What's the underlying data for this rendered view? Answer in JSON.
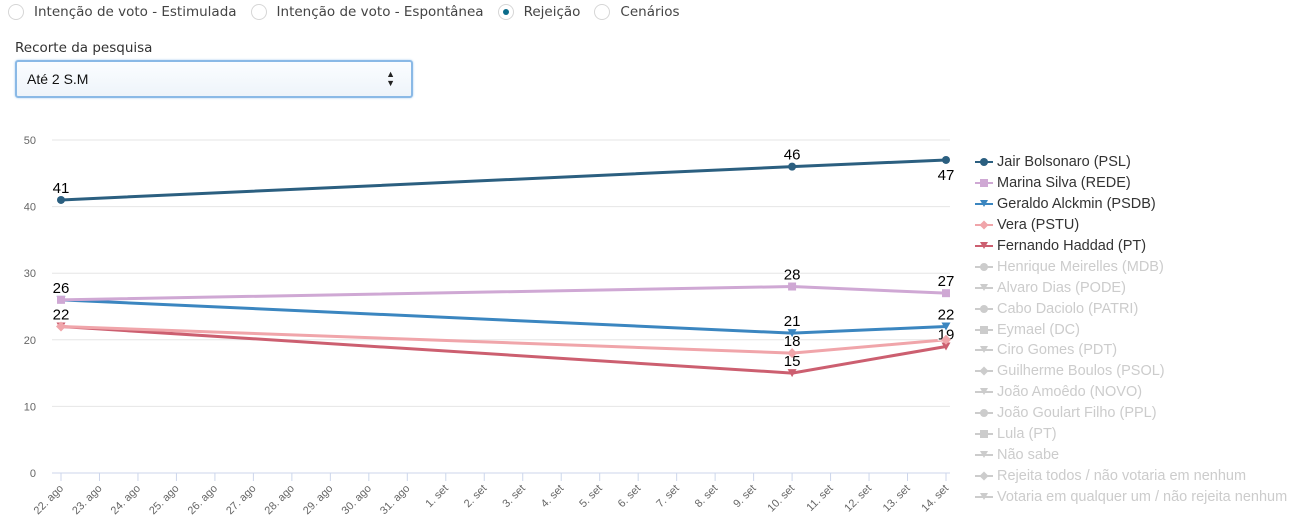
{
  "radios": [
    {
      "label": "Intenção de voto - Estimulada",
      "selected": false
    },
    {
      "label": "Intenção de voto - Espontânea",
      "selected": false
    },
    {
      "label": "Rejeição",
      "selected": true
    },
    {
      "label": "Cenários",
      "selected": false
    }
  ],
  "filter": {
    "label": "Recorte da pesquisa",
    "selected": "Até 2 S.M"
  },
  "chart_data": {
    "type": "line",
    "title": "",
    "xlabel": "",
    "ylabel": "",
    "ylim": [
      0,
      50
    ],
    "yticks": [
      0,
      10,
      20,
      30,
      40,
      50
    ],
    "grid": true,
    "legend_position": "right",
    "x_ticks": [
      "22. ago",
      "23. ago",
      "24. ago",
      "25. ago",
      "26. ago",
      "27. ago",
      "28. ago",
      "29. ago",
      "30. ago",
      "31. ago",
      "1. set",
      "2. set",
      "3. set",
      "4. set",
      "5. set",
      "6. set",
      "7. set",
      "8. set",
      "9. set",
      "10. set",
      "11. set",
      "12. set",
      "13. set",
      "14. set"
    ],
    "x": [
      "22. ago",
      "10. set",
      "14. set"
    ],
    "series": [
      {
        "name": "Jair Bolsonaro (PSL)",
        "color": "#2b5f80",
        "marker": "circle",
        "visible": true,
        "values": [
          41,
          46,
          47
        ],
        "labels": [
          "41",
          "46",
          "47"
        ],
        "label_pos": [
          "above",
          "above",
          "below"
        ]
      },
      {
        "name": "Marina Silva (REDE)",
        "color": "#cfa8d4",
        "marker": "square",
        "visible": true,
        "values": [
          26,
          28,
          27
        ],
        "labels": [
          "",
          "28",
          "27"
        ],
        "label_pos": [
          "above",
          "above",
          "above"
        ]
      },
      {
        "name": "Geraldo Alckmin (PSDB)",
        "color": "#3b86c0",
        "marker": "triangle-down",
        "visible": true,
        "values": [
          26,
          21,
          22
        ],
        "labels": [
          "26",
          "21",
          "22"
        ],
        "label_pos": [
          "above",
          "above",
          "above"
        ]
      },
      {
        "name": "Vera (PSTU)",
        "color": "#f0a5aa",
        "marker": "diamond",
        "visible": true,
        "values": [
          22,
          18,
          20
        ],
        "labels": [
          "",
          "18",
          ""
        ],
        "label_pos": [
          "above",
          "above",
          "above"
        ]
      },
      {
        "name": "Fernando Haddad (PT)",
        "color": "#cc5f70",
        "marker": "triangle-down",
        "visible": true,
        "values": [
          22,
          15,
          19
        ],
        "labels": [
          "22",
          "15",
          "19"
        ],
        "label_pos": [
          "above",
          "above",
          "above"
        ]
      },
      {
        "name": "Henrique Meirelles (MDB)",
        "marker": "circle",
        "visible": false
      },
      {
        "name": "Alvaro Dias (PODE)",
        "marker": "triangle-down",
        "visible": false
      },
      {
        "name": "Cabo Daciolo (PATRI)",
        "marker": "circle",
        "visible": false
      },
      {
        "name": "Eymael (DC)",
        "marker": "square",
        "visible": false
      },
      {
        "name": "Ciro Gomes (PDT)",
        "marker": "triangle-down",
        "visible": false
      },
      {
        "name": "Guilherme Boulos (PSOL)",
        "marker": "diamond",
        "visible": false
      },
      {
        "name": "João Amoêdo (NOVO)",
        "marker": "triangle-down",
        "visible": false
      },
      {
        "name": "João Goulart Filho (PPL)",
        "marker": "circle",
        "visible": false
      },
      {
        "name": "Lula (PT)",
        "marker": "square",
        "visible": false
      },
      {
        "name": "Não sabe",
        "marker": "triangle-down",
        "visible": false
      },
      {
        "name": "Rejeita todos / não votaria em nenhum",
        "marker": "diamond",
        "visible": false
      },
      {
        "name": "Votaria em qualquer um / não rejeita nenhum",
        "marker": "triangle-down",
        "visible": false
      }
    ]
  }
}
